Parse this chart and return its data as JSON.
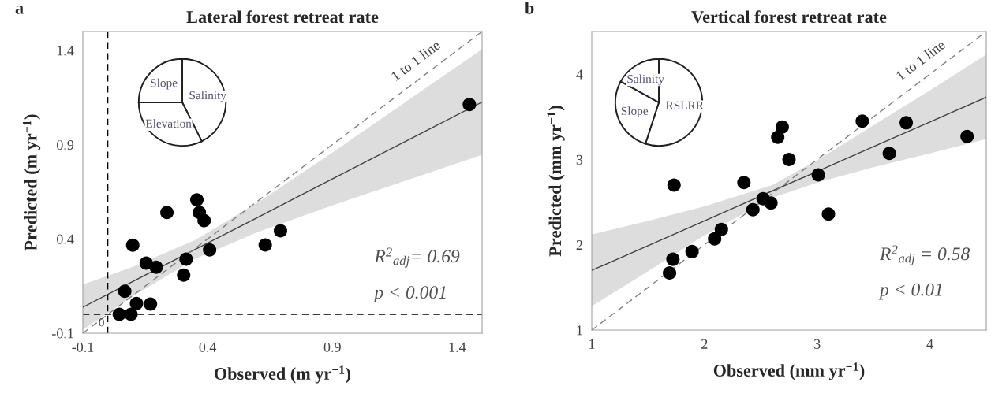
{
  "chart_data": [
    {
      "type": "scatter",
      "title": "Lateral forest retreat rate",
      "xlabel": "Observed (m yr$^{−1}$)",
      "ylabel": "Predicted (m yr$^{−1}$)",
      "xlim": [
        -0.1,
        1.5
      ],
      "ylim": [
        -0.1,
        1.5
      ],
      "xticks": [
        -0.1,
        0.4,
        0.9,
        1.4
      ],
      "yticks": [
        -0.1,
        0.4,
        0.9,
        1.4
      ],
      "grid": false,
      "legend": false,
      "annotations": [
        "a",
        "1 to 1 line",
        "R$^{2}$$_{adj}$= 0.69",
        "p < 0.001"
      ],
      "ref_lines": [
        {
          "axis": "x",
          "value": 0,
          "label": "0",
          "line_style": "dashed",
          "color": "#000000"
        },
        {
          "axis": "y",
          "value": 0,
          "line_style": "dashed",
          "color": "#000000"
        }
      ],
      "series": [
        {
          "type": "scatter",
          "marker": "circle",
          "color": "#000000",
          "x": [
            0.046,
            0.093,
            0.068,
            0.115,
            0.171,
            0.1,
            0.154,
            0.194,
            0.304,
            0.314,
            0.237,
            0.357,
            0.367,
            0.386,
            0.408,
            0.631,
            0.692,
            1.449
          ],
          "values": [
            0.0,
            0.0,
            0.122,
            0.058,
            0.055,
            0.367,
            0.272,
            0.25,
            0.208,
            0.293,
            0.54,
            0.607,
            0.54,
            0.497,
            0.342,
            0.368,
            0.443,
            1.113
          ]
        },
        {
          "type": "line",
          "color": "#404040",
          "x": [
            -0.1,
            0.1,
            0.35,
            0.6,
            0.9,
            1.2,
            1.5
          ],
          "values": [
            0.038,
            0.174,
            0.344,
            0.514,
            0.718,
            0.922,
            1.126
          ],
          "lower": [
            -0.082,
            0.096,
            0.294,
            0.436,
            0.578,
            0.712,
            0.846
          ],
          "upper": [
            0.158,
            0.252,
            0.394,
            0.592,
            0.858,
            1.132,
            1.406
          ]
        },
        {
          "type": "line",
          "color": "#808080",
          "line_style": "dashed",
          "x": [
            -0.1,
            1.5
          ],
          "values": [
            -0.1,
            1.5
          ]
        }
      ]
    },
    {
      "type": "pie",
      "categories": [
        "Salinity",
        "Elevation",
        "Slope"
      ],
      "values": [
        42.6,
        32.4,
        25
      ],
      "colors": [
        "#ffffff",
        "#ffffff",
        "#ffffff"
      ]
    },
    {
      "type": "scatter",
      "title": "Vertical forest retreat rate",
      "xlabel": "Observed (mm yr$^{−1}$)",
      "ylabel": "Predicted (mm yr$^{−1}$)",
      "xlim": [
        1,
        4.5
      ],
      "ylim": [
        1,
        4.5
      ],
      "xticks": [
        1,
        2,
        3,
        4
      ],
      "yticks": [
        1,
        2,
        3,
        4
      ],
      "grid": false,
      "legend": false,
      "annotations": [
        "b",
        "1 to 1 line",
        "R$^{2}$$_{adj}$ = 0.58",
        "p < 0.01"
      ],
      "series": [
        {
          "type": "scatter",
          "marker": "circle",
          "color": "#000000",
          "x": [
            1.69,
            1.72,
            1.73,
            1.89,
            2.09,
            2.15,
            2.35,
            2.43,
            2.52,
            2.59,
            2.65,
            2.69,
            2.75,
            3.01,
            3.1,
            3.4,
            3.64,
            3.79,
            4.33
          ],
          "values": [
            1.67,
            1.83,
            2.7,
            1.92,
            2.07,
            2.18,
            2.73,
            2.41,
            2.54,
            2.49,
            3.26,
            3.38,
            3.0,
            2.82,
            2.36,
            3.45,
            3.07,
            3.43,
            3.27
          ]
        },
        {
          "type": "line",
          "color": "#404040",
          "x": [
            1,
            1.5,
            2,
            2.6,
            3,
            3.5,
            4,
            4.5
          ],
          "values": [
            1.7,
            1.99,
            2.28,
            2.63,
            2.86,
            3.15,
            3.44,
            3.73
          ],
          "lower": [
            1.28,
            1.69,
            2.11,
            2.55,
            2.73,
            2.91,
            3.07,
            3.24
          ],
          "upper": [
            2.12,
            2.28,
            2.45,
            2.7,
            2.99,
            3.4,
            3.81,
            4.23
          ]
        },
        {
          "type": "line",
          "color": "#808080",
          "line_style": "dashed",
          "x": [
            1,
            4.5
          ],
          "values": [
            1,
            4.5
          ]
        }
      ]
    },
    {
      "type": "pie",
      "categories": [
        "RSLRR",
        "Slope",
        "Salinity"
      ],
      "values": [
        55,
        28,
        17
      ],
      "colors": [
        "#ffffff",
        "#ffffff",
        "#ffffff"
      ]
    }
  ]
}
